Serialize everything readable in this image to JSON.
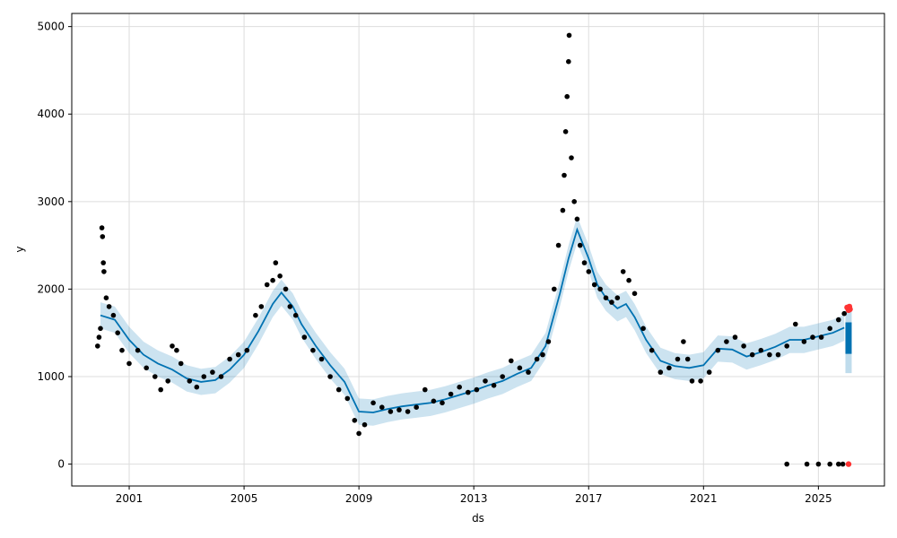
{
  "chart_data": {
    "type": "line",
    "xlabel": "ds",
    "ylabel": "y",
    "xlim": [
      1999.0,
      2027.3
    ],
    "ylim": [
      -250,
      5150
    ],
    "x_ticks": [
      2001,
      2005,
      2009,
      2013,
      2017,
      2021,
      2025
    ],
    "x_tick_labels": [
      "2001",
      "2005",
      "2009",
      "2013",
      "2017",
      "2021",
      "2025"
    ],
    "y_ticks": [
      0,
      1000,
      2000,
      3000,
      4000,
      5000
    ],
    "y_tick_labels": [
      "0",
      "1000",
      "2000",
      "3000",
      "4000",
      "5000"
    ],
    "grid": true,
    "colors": {
      "actual": "#000000",
      "forecast": "#0072B2",
      "interval": "#0072B2",
      "recent": "#ff3333"
    },
    "forecast_series": [
      [
        2000.0,
        1700
      ],
      [
        2000.5,
        1650
      ],
      [
        2001.0,
        1420
      ],
      [
        2001.5,
        1250
      ],
      [
        2002.0,
        1150
      ],
      [
        2002.5,
        1080
      ],
      [
        2003.0,
        980
      ],
      [
        2003.5,
        940
      ],
      [
        2004.0,
        960
      ],
      [
        2004.5,
        1080
      ],
      [
        2005.0,
        1250
      ],
      [
        2005.5,
        1520
      ],
      [
        2006.0,
        1830
      ],
      [
        2006.3,
        1960
      ],
      [
        2006.7,
        1800
      ],
      [
        2007.0,
        1600
      ],
      [
        2007.5,
        1350
      ],
      [
        2008.0,
        1130
      ],
      [
        2008.5,
        940
      ],
      [
        2009.0,
        600
      ],
      [
        2009.5,
        590
      ],
      [
        2010.0,
        630
      ],
      [
        2010.5,
        660
      ],
      [
        2011.0,
        680
      ],
      [
        2011.5,
        700
      ],
      [
        2012.0,
        740
      ],
      [
        2012.5,
        790
      ],
      [
        2013.0,
        840
      ],
      [
        2013.5,
        900
      ],
      [
        2014.0,
        950
      ],
      [
        2014.5,
        1030
      ],
      [
        2015.0,
        1100
      ],
      [
        2015.5,
        1350
      ],
      [
        2016.0,
        1950
      ],
      [
        2016.3,
        2350
      ],
      [
        2016.6,
        2680
      ],
      [
        2017.0,
        2350
      ],
      [
        2017.3,
        2050
      ],
      [
        2017.6,
        1900
      ],
      [
        2018.0,
        1780
      ],
      [
        2018.3,
        1830
      ],
      [
        2018.6,
        1680
      ],
      [
        2019.0,
        1420
      ],
      [
        2019.5,
        1180
      ],
      [
        2020.0,
        1120
      ],
      [
        2020.5,
        1100
      ],
      [
        2021.0,
        1130
      ],
      [
        2021.5,
        1320
      ],
      [
        2022.0,
        1310
      ],
      [
        2022.5,
        1230
      ],
      [
        2023.0,
        1280
      ],
      [
        2023.5,
        1340
      ],
      [
        2024.0,
        1420
      ],
      [
        2024.5,
        1420
      ],
      [
        2025.0,
        1460
      ],
      [
        2025.5,
        1500
      ],
      [
        2025.9,
        1560
      ]
    ],
    "interval_halfwidth": 150,
    "forecast_tail": {
      "x": 2026.05,
      "y_low": 1260,
      "y_high": 1620
    },
    "forecast_tail_interval": {
      "x": 2026.05,
      "y_low": 1040,
      "y_high": 1820
    },
    "actual_points": [
      [
        1999.9,
        1350
      ],
      [
        1999.95,
        1450
      ],
      [
        2000.0,
        1550
      ],
      [
        2000.05,
        2700
      ],
      [
        2000.07,
        2600
      ],
      [
        2000.1,
        2300
      ],
      [
        2000.12,
        2200
      ],
      [
        2000.2,
        1900
      ],
      [
        2000.3,
        1800
      ],
      [
        2000.45,
        1700
      ],
      [
        2000.6,
        1500
      ],
      [
        2000.75,
        1300
      ],
      [
        2001.0,
        1150
      ],
      [
        2001.3,
        1300
      ],
      [
        2001.6,
        1100
      ],
      [
        2001.9,
        1000
      ],
      [
        2002.1,
        850
      ],
      [
        2002.35,
        950
      ],
      [
        2002.5,
        1350
      ],
      [
        2002.65,
        1300
      ],
      [
        2002.8,
        1150
      ],
      [
        2003.1,
        950
      ],
      [
        2003.35,
        880
      ],
      [
        2003.6,
        1000
      ],
      [
        2003.9,
        1050
      ],
      [
        2004.2,
        1000
      ],
      [
        2004.5,
        1200
      ],
      [
        2004.8,
        1250
      ],
      [
        2005.1,
        1300
      ],
      [
        2005.4,
        1700
      ],
      [
        2005.6,
        1800
      ],
      [
        2005.8,
        2050
      ],
      [
        2006.0,
        2100
      ],
      [
        2006.1,
        2300
      ],
      [
        2006.25,
        2150
      ],
      [
        2006.45,
        2000
      ],
      [
        2006.6,
        1800
      ],
      [
        2006.8,
        1700
      ],
      [
        2007.1,
        1450
      ],
      [
        2007.4,
        1300
      ],
      [
        2007.7,
        1200
      ],
      [
        2008.0,
        1000
      ],
      [
        2008.3,
        850
      ],
      [
        2008.6,
        750
      ],
      [
        2008.85,
        500
      ],
      [
        2009.0,
        350
      ],
      [
        2009.2,
        450
      ],
      [
        2009.5,
        700
      ],
      [
        2009.8,
        650
      ],
      [
        2010.1,
        600
      ],
      [
        2010.4,
        620
      ],
      [
        2010.7,
        600
      ],
      [
        2011.0,
        650
      ],
      [
        2011.3,
        850
      ],
      [
        2011.6,
        720
      ],
      [
        2011.9,
        700
      ],
      [
        2012.2,
        800
      ],
      [
        2012.5,
        880
      ],
      [
        2012.8,
        820
      ],
      [
        2013.1,
        850
      ],
      [
        2013.4,
        950
      ],
      [
        2013.7,
        900
      ],
      [
        2014.0,
        1000
      ],
      [
        2014.3,
        1180
      ],
      [
        2014.6,
        1100
      ],
      [
        2014.9,
        1050
      ],
      [
        2015.2,
        1200
      ],
      [
        2015.4,
        1250
      ],
      [
        2015.6,
        1400
      ],
      [
        2015.8,
        2000
      ],
      [
        2015.95,
        2500
      ],
      [
        2016.1,
        2900
      ],
      [
        2016.15,
        3300
      ],
      [
        2016.2,
        3800
      ],
      [
        2016.25,
        4200
      ],
      [
        2016.3,
        4600
      ],
      [
        2016.32,
        4900
      ],
      [
        2016.4,
        3500
      ],
      [
        2016.5,
        3000
      ],
      [
        2016.6,
        2800
      ],
      [
        2016.7,
        2500
      ],
      [
        2016.85,
        2300
      ],
      [
        2017.0,
        2200
      ],
      [
        2017.2,
        2050
      ],
      [
        2017.4,
        2000
      ],
      [
        2017.6,
        1900
      ],
      [
        2017.8,
        1850
      ],
      [
        2018.0,
        1900
      ],
      [
        2018.2,
        2200
      ],
      [
        2018.4,
        2100
      ],
      [
        2018.6,
        1950
      ],
      [
        2018.9,
        1550
      ],
      [
        2019.2,
        1300
      ],
      [
        2019.5,
        1050
      ],
      [
        2019.8,
        1100
      ],
      [
        2020.1,
        1200
      ],
      [
        2020.3,
        1400
      ],
      [
        2020.45,
        1200
      ],
      [
        2020.6,
        950
      ],
      [
        2020.9,
        950
      ],
      [
        2021.2,
        1050
      ],
      [
        2021.5,
        1300
      ],
      [
        2021.8,
        1400
      ],
      [
        2022.1,
        1450
      ],
      [
        2022.4,
        1350
      ],
      [
        2022.7,
        1250
      ],
      [
        2023.0,
        1300
      ],
      [
        2023.3,
        1250
      ],
      [
        2023.6,
        1250
      ],
      [
        2023.9,
        1350
      ],
      [
        2024.2,
        1600
      ],
      [
        2024.5,
        1400
      ],
      [
        2024.8,
        1450
      ],
      [
        2025.1,
        1450
      ],
      [
        2025.4,
        1550
      ],
      [
        2025.7,
        1650
      ],
      [
        2025.9,
        1720
      ],
      [
        2023.9,
        0
      ],
      [
        2024.6,
        0
      ],
      [
        2025.0,
        0
      ],
      [
        2025.4,
        0
      ],
      [
        2025.7,
        0
      ],
      [
        2025.85,
        0
      ]
    ],
    "recent_points": [
      [
        2026.0,
        1790
      ],
      [
        2026.05,
        1760
      ],
      [
        2026.08,
        1800
      ],
      [
        2026.1,
        1770
      ],
      [
        2026.05,
        0
      ]
    ]
  }
}
